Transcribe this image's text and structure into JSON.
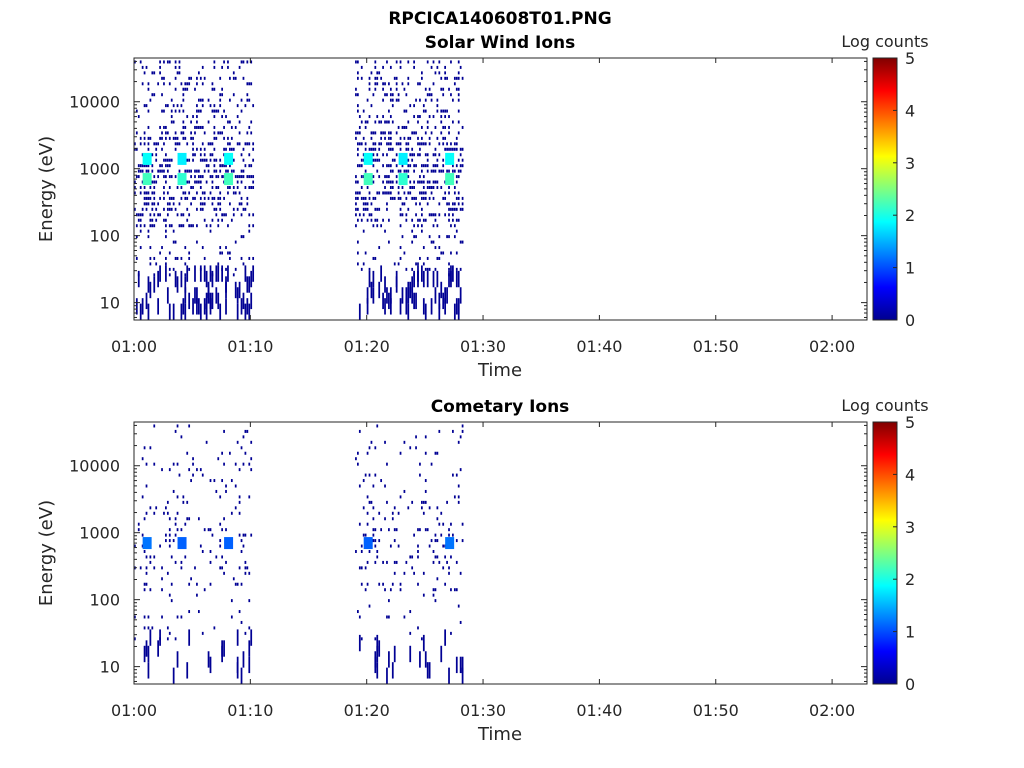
{
  "figure_title": "RPCICA140608T01.PNG",
  "chart_data": [
    {
      "type": "heatmap",
      "title": "Solar Wind Ions",
      "xlabel": "Time",
      "ylabel": "Energy (eV)",
      "xlim": [
        "01:00",
        "02:03"
      ],
      "xticks": [
        "01:00",
        "01:10",
        "01:20",
        "01:30",
        "01:40",
        "01:50",
        "02:00"
      ],
      "ylim": [
        5.5,
        45000
      ],
      "yscale": "log",
      "yticks": [
        "10",
        "100",
        "1000",
        "10000"
      ],
      "colorbar": {
        "label": "Log counts",
        "min": 0,
        "max": 5,
        "ticks": [
          "0",
          "1",
          "2",
          "3",
          "4",
          "5"
        ],
        "colormap": "jet"
      },
      "data_intervals": [
        {
          "start": "01:00",
          "end": "01:10"
        },
        {
          "start": "01:19",
          "end": "01:28"
        }
      ],
      "peaks": [
        {
          "time": "01:01",
          "energy_eV": 700,
          "log_counts": 2.2
        },
        {
          "time": "01:01",
          "energy_eV": 1400,
          "log_counts": 1.9
        },
        {
          "time": "01:04",
          "energy_eV": 700,
          "log_counts": 2.1
        },
        {
          "time": "01:04",
          "energy_eV": 1400,
          "log_counts": 1.8
        },
        {
          "time": "01:08",
          "energy_eV": 700,
          "log_counts": 2.2
        },
        {
          "time": "01:08",
          "energy_eV": 1400,
          "log_counts": 1.9
        },
        {
          "time": "01:20",
          "energy_eV": 700,
          "log_counts": 2.2
        },
        {
          "time": "01:20",
          "energy_eV": 1400,
          "log_counts": 1.9
        },
        {
          "time": "01:23",
          "energy_eV": 700,
          "log_counts": 2.1
        },
        {
          "time": "01:23",
          "energy_eV": 1400,
          "log_counts": 1.8
        },
        {
          "time": "01:27",
          "energy_eV": 700,
          "log_counts": 2.2
        },
        {
          "time": "01:27",
          "energy_eV": 1400,
          "log_counts": 1.9
        }
      ],
      "background_log_counts": 0.1
    },
    {
      "type": "heatmap",
      "title": "Cometary Ions",
      "xlabel": "Time",
      "ylabel": "Energy (eV)",
      "xlim": [
        "01:00",
        "02:03"
      ],
      "xticks": [
        "01:00",
        "01:10",
        "01:20",
        "01:30",
        "01:40",
        "01:50",
        "02:00"
      ],
      "ylim": [
        5.5,
        45000
      ],
      "yscale": "log",
      "yticks": [
        "10",
        "100",
        "1000",
        "10000"
      ],
      "colorbar": {
        "label": "Log counts",
        "min": 0,
        "max": 5,
        "ticks": [
          "0",
          "1",
          "2",
          "3",
          "4",
          "5"
        ],
        "colormap": "jet"
      },
      "data_intervals": [
        {
          "start": "01:00",
          "end": "01:10"
        },
        {
          "start": "01:19",
          "end": "01:28"
        }
      ],
      "peaks": [
        {
          "time": "01:01",
          "energy_eV": 700,
          "log_counts": 1.2
        },
        {
          "time": "01:04",
          "energy_eV": 700,
          "log_counts": 1.1
        },
        {
          "time": "01:08",
          "energy_eV": 700,
          "log_counts": 1.1
        },
        {
          "time": "01:20",
          "energy_eV": 700,
          "log_counts": 1.1
        },
        {
          "time": "01:27",
          "energy_eV": 700,
          "log_counts": 1.2
        }
      ],
      "background_log_counts": 0.1
    }
  ]
}
